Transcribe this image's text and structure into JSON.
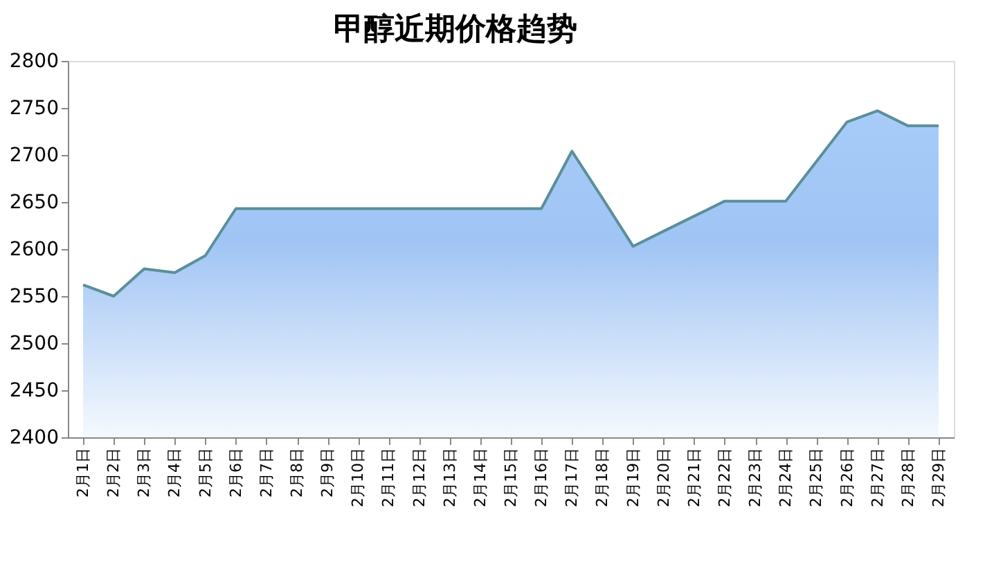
{
  "chart_data": {
    "type": "area",
    "title": "甲醇近期价格趋势",
    "categories": [
      "2月1日",
      "2月2日",
      "2月3日",
      "2月4日",
      "2月5日",
      "2月6日",
      "2月7日",
      "2月8日",
      "2月9日",
      "2月10日",
      "2月11日",
      "2月12日",
      "2月13日",
      "2月14日",
      "2月15日",
      "2月16日",
      "2月17日",
      "2月18日",
      "2月19日",
      "2月20日",
      "2月21日",
      "2月22日",
      "2月23日",
      "2月24日",
      "2月25日",
      "2月26日",
      "2月27日",
      "2月28日",
      "2月29日"
    ],
    "series": [
      {
        "color": "#5b8f99",
        "values": [
          2562,
          2550,
          2579,
          2575,
          2593,
          2643,
          2643,
          2643,
          2643,
          2643,
          2643,
          2643,
          2643,
          2643,
          2643,
          2643,
          2704,
          2654,
          2603,
          2619,
          2635,
          2651,
          2651,
          2651,
          2693,
          2735,
          2747,
          2731,
          2731
        ]
      }
    ],
    "ylim": [
      2400,
      2800
    ],
    "yticks": [
      2400,
      2450,
      2500,
      2550,
      2600,
      2650,
      2700,
      2750,
      2800
    ],
    "grid": false
  }
}
